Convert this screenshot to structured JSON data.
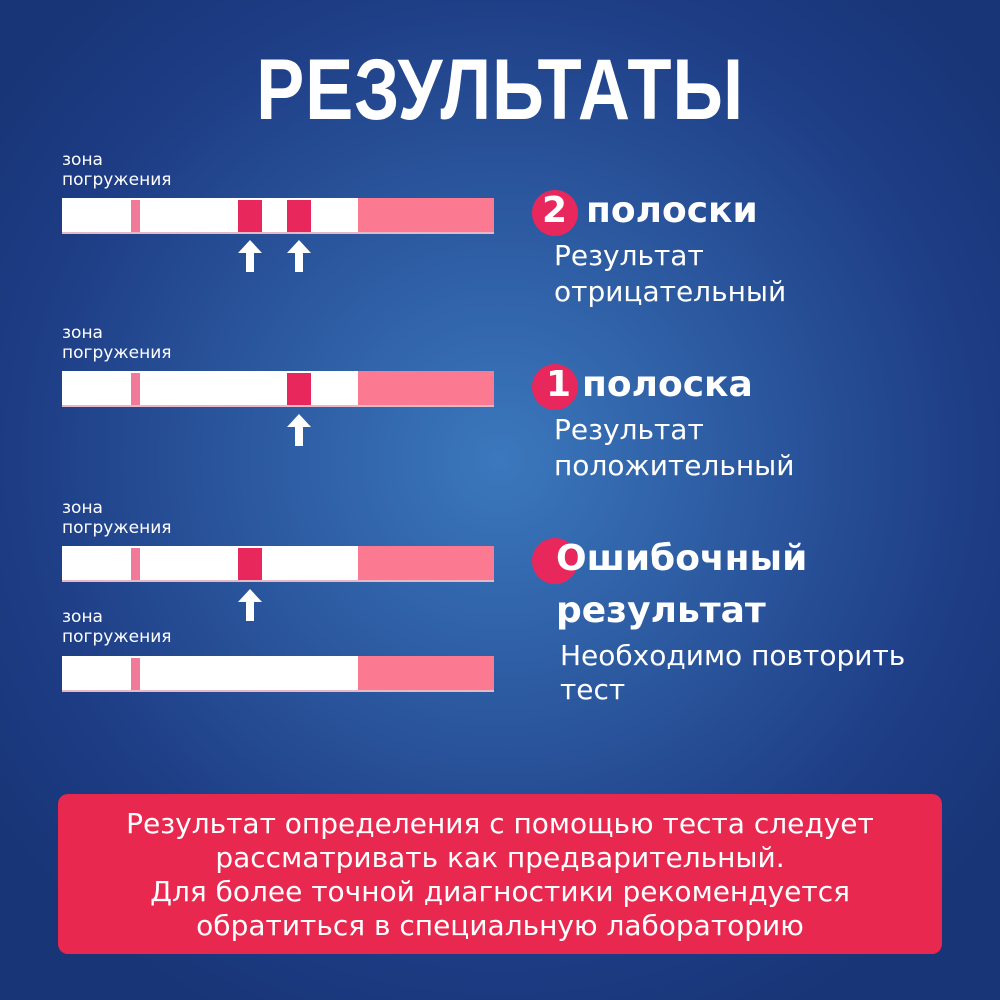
{
  "title": "РЕЗУЛЬТАТЫ",
  "colors": {
    "badge": "#e8285c",
    "notice_bg": "#e8284f",
    "handle": "#fb7a92",
    "band": "#e8285c"
  },
  "tests": [
    {
      "zone_label": [
        "зона",
        "погружения"
      ],
      "bands": 2,
      "arrows": 2
    },
    {
      "zone_label": [
        "зона",
        "погружения"
      ],
      "bands": 1,
      "arrows": 1
    },
    {
      "zone_label": [
        "зона",
        "погружения"
      ],
      "bands": 1,
      "arrows": 1
    },
    {
      "zone_label": [
        "зона",
        "погружения"
      ],
      "bands": 0,
      "arrows": 0
    }
  ],
  "results": [
    {
      "badge_number": "2",
      "headline": "полоски",
      "description": [
        "Результат",
        "отрицательный"
      ]
    },
    {
      "badge_number": "1",
      "headline": "полоска",
      "description": [
        "Результат",
        "положительный"
      ]
    },
    {
      "badge_number": "",
      "headline": [
        "Ошибочный",
        "результат"
      ],
      "description": [
        "Необходимо повторить",
        "тест"
      ]
    }
  ],
  "notice": [
    "Результат определения с помощью теста следует",
    "рассматривать как предварительный.",
    "Для более точной диагностики рекомендуется",
    "обратиться в специальную лабораторию"
  ],
  "icons": {
    "arrow": "arrow-up-icon"
  }
}
